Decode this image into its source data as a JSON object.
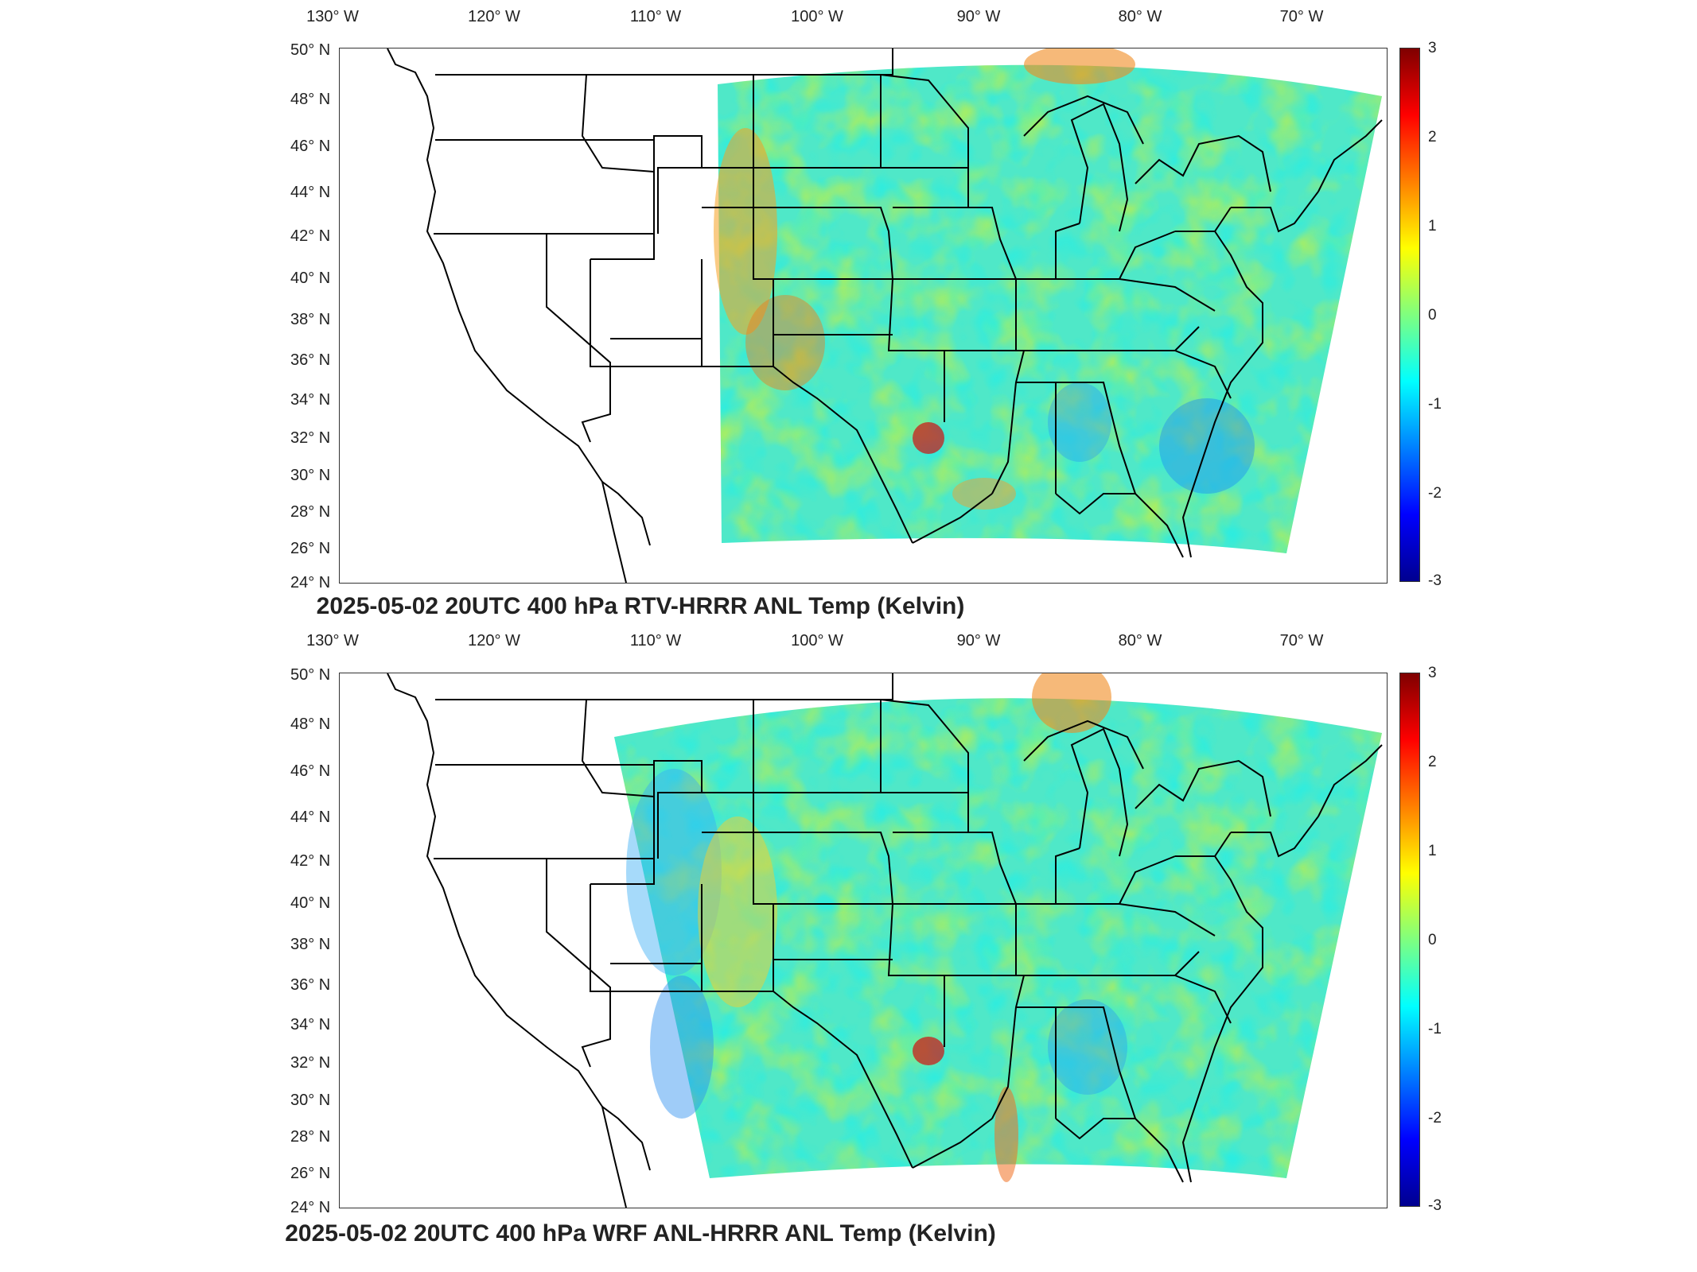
{
  "lon_labels": [
    "130° W",
    "120° W",
    "110° W",
    "100° W",
    "90° W",
    "80° W",
    "70° W"
  ],
  "lat_labels": [
    "50° N",
    "48° N",
    "46° N",
    "44° N",
    "42° N",
    "40° N",
    "38° N",
    "36° N",
    "34° N",
    "32° N",
    "30° N",
    "28° N",
    "26° N",
    "24° N"
  ],
  "colorbar": {
    "ticks": [
      "3",
      "2",
      "1",
      "0",
      "-1",
      "-2",
      "-3"
    ],
    "range": [
      -3,
      3
    ],
    "colormap": "jet",
    "colors": [
      "#00008f",
      "#0000ff",
      "#00ffff",
      "#7fff7f",
      "#ffff00",
      "#ff0000",
      "#7f0000"
    ]
  },
  "panels": [
    {
      "title": "2025-05-02 20UTC 400 hPa RTV-HRRR ANL Temp (Kelvin)",
      "domain": "east-of-106W"
    },
    {
      "title": "2025-05-02 20UTC 400 hPa WRF ANL-HRRR ANL Temp (Kelvin)",
      "domain": "east-of-113W"
    }
  ]
}
